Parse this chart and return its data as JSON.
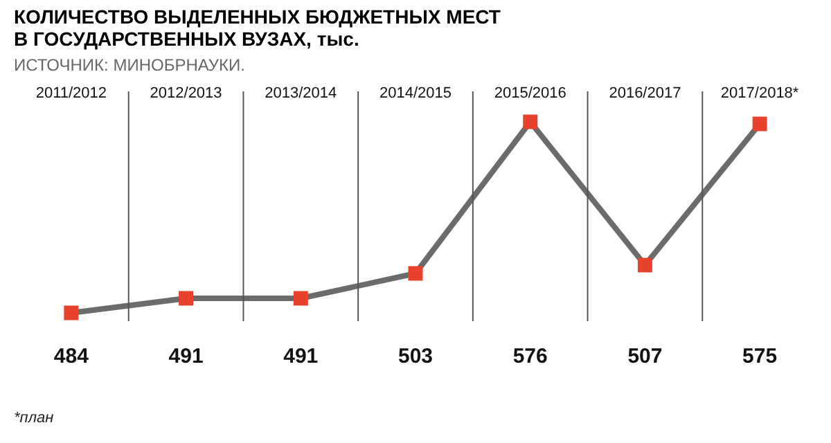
{
  "chart_data": {
    "type": "line",
    "title": [
      "КОЛИЧЕСТВО ВЫДЕЛЕННЫХ БЮДЖЕТНЫХ МЕСТ",
      "В ГОСУДАРСТВЕННЫХ ВУЗАХ, тыс."
    ],
    "subtitle": "ИСТОЧНИК: МИНОБРНАУКИ.",
    "categories": [
      "2011/2012",
      "2012/2013",
      "2013/2014",
      "2014/2015",
      "2015/2016",
      "2016/2017",
      "2017/2018*"
    ],
    "series": [
      {
        "color": "#6b6b6b",
        "values": [
          484,
          491,
          491,
          503,
          576,
          507,
          575
        ]
      }
    ],
    "colors": [
      "#e8412c",
      "#e8412c",
      "#e8412c",
      "#e8412c",
      "#e8412c",
      "#e8412c",
      "#e8412c"
    ],
    "data_labels": true,
    "marker": "square",
    "line_style": "solid",
    "grid": "x",
    "annotations": [
      "*план"
    ]
  }
}
